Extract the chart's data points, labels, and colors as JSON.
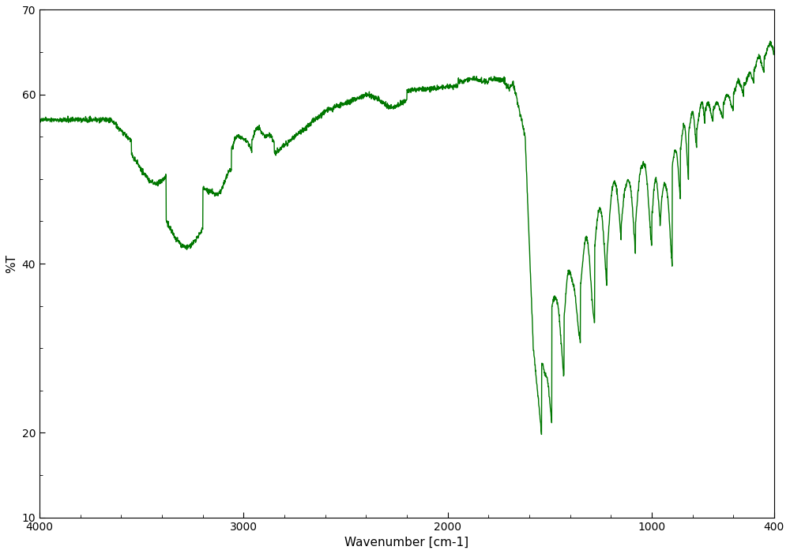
{
  "line_color": "#007700",
  "line_width": 1.0,
  "background_color": "#ffffff",
  "xlabel": "Wavenumber [cm-1]",
  "ylabel": "%T",
  "xlim": [
    4000,
    400
  ],
  "ylim": [
    10,
    70
  ],
  "yticks": [
    10,
    20,
    40,
    60,
    70
  ],
  "xticks": [
    4000,
    3000,
    2000,
    1000,
    400
  ],
  "xlabel_fontsize": 11,
  "ylabel_fontsize": 11,
  "tick_fontsize": 10
}
